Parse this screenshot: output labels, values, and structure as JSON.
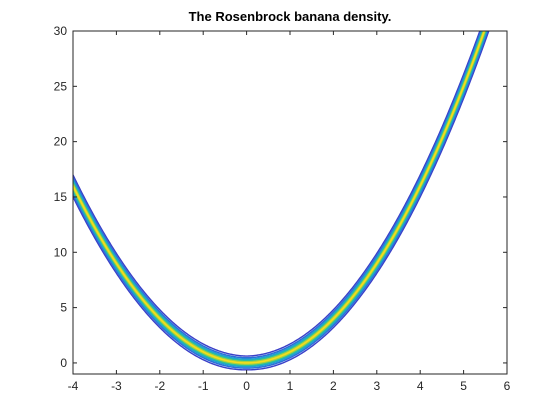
{
  "chart_data": {
    "type": "contour",
    "title": "The Rosenbrock banana density.",
    "xlabel": "",
    "ylabel": "",
    "xlim": [
      -4,
      6
    ],
    "ylim": [
      -1,
      30
    ],
    "xticks": [
      "-4",
      "-3",
      "-2",
      "-1",
      "0",
      "1",
      "2",
      "3",
      "4",
      "5",
      "6"
    ],
    "yticks": [
      "0",
      "5",
      "10",
      "15",
      "20",
      "25",
      "30"
    ],
    "grid": false,
    "ridge_curve": "y = x^2",
    "series": [
      {
        "offset": -0.62,
        "color": "#3a3fc8",
        "width": 1.4
      },
      {
        "offset": 0.62,
        "color": "#3a3fc8",
        "width": 1.4
      },
      {
        "offset": -0.46,
        "color": "#2b6fd9",
        "width": 1.6
      },
      {
        "offset": 0.46,
        "color": "#2b6fd9",
        "width": 1.6
      },
      {
        "offset": -0.32,
        "color": "#1ea0d2",
        "width": 1.8
      },
      {
        "offset": 0.32,
        "color": "#1ea0d2",
        "width": 1.8
      },
      {
        "offset": -0.2,
        "color": "#2cc09a",
        "width": 1.8
      },
      {
        "offset": 0.2,
        "color": "#2cc09a",
        "width": 1.8
      },
      {
        "offset": -0.1,
        "color": "#a9d13e",
        "width": 1.6
      },
      {
        "offset": 0.1,
        "color": "#a9d13e",
        "width": 1.6
      },
      {
        "offset": 0.0,
        "color": "#f5dd1c",
        "width": 1.6
      }
    ]
  }
}
